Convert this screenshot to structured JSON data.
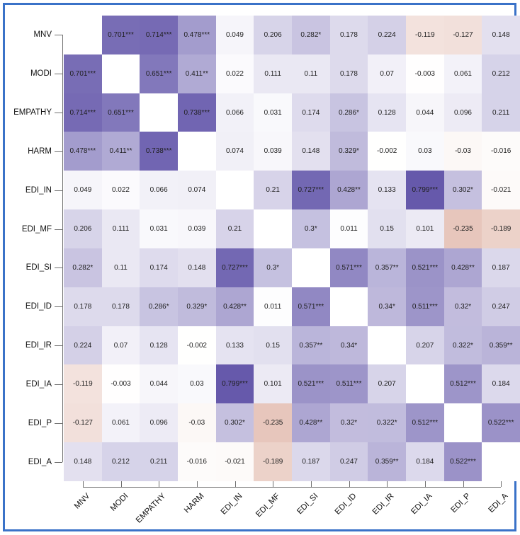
{
  "figure": {
    "border_color": "#3a72c8",
    "background": "#ffffff",
    "axis_color": "#707070",
    "cell_text_color": "#1f1f1f"
  },
  "chart_data": {
    "type": "heatmap",
    "title": "",
    "xlabel": "",
    "ylabel": "",
    "legend": "none",
    "grid": false,
    "value_range": [
      -1,
      1
    ],
    "variables": [
      "MNV",
      "MODI",
      "EMPATHY",
      "HARM",
      "EDI_IN",
      "EDI_MF",
      "EDI_SI",
      "EDI_ID",
      "EDI_IR",
      "EDI_IA",
      "EDI_P",
      "EDI_A"
    ],
    "matrix": [
      [
        "",
        "0.701***",
        "0.714***",
        "0.478***",
        "0.049",
        "0.206",
        "0.282*",
        "0.178",
        "0.224",
        "-0.119",
        "-0.127",
        "0.148"
      ],
      [
        "0.701***",
        "",
        "0.651***",
        "0.411**",
        "0.022",
        "0.111",
        "0.11",
        "0.178",
        "0.07",
        "-0.003",
        "0.061",
        "0.212"
      ],
      [
        "0.714***",
        "0.651***",
        "",
        "0.738***",
        "0.066",
        "0.031",
        "0.174",
        "0.286*",
        "0.128",
        "0.044",
        "0.096",
        "0.211"
      ],
      [
        "0.478***",
        "0.411**",
        "0.738***",
        "",
        "0.074",
        "0.039",
        "0.148",
        "0.329*",
        "-0.002",
        "0.03",
        "-0.03",
        "-0.016"
      ],
      [
        "0.049",
        "0.022",
        "0.066",
        "0.074",
        "",
        "0.21",
        "0.727***",
        "0.428**",
        "0.133",
        "0.799***",
        "0.302*",
        "-0.021"
      ],
      [
        "0.206",
        "0.111",
        "0.031",
        "0.039",
        "0.21",
        "",
        "0.3*",
        "0.011",
        "0.15",
        "0.101",
        "-0.235",
        "-0.189"
      ],
      [
        "0.282*",
        "0.11",
        "0.174",
        "0.148",
        "0.727***",
        "0.3*",
        "",
        "0.571***",
        "0.357**",
        "0.521***",
        "0.428**",
        "0.187"
      ],
      [
        "0.178",
        "0.178",
        "0.286*",
        "0.329*",
        "0.428**",
        "0.011",
        "0.571***",
        "",
        "0.34*",
        "0.511***",
        "0.32*",
        "0.247"
      ],
      [
        "0.224",
        "0.07",
        "0.128",
        "-0.002",
        "0.133",
        "0.15",
        "0.357**",
        "0.34*",
        "",
        "0.207",
        "0.322*",
        "0.359**"
      ],
      [
        "-0.119",
        "-0.003",
        "0.044",
        "0.03",
        "0.799***",
        "0.101",
        "0.521***",
        "0.511***",
        "0.207",
        "",
        "0.512***",
        "0.184"
      ],
      [
        "-0.127",
        "0.061",
        "0.096",
        "-0.03",
        "0.302*",
        "-0.235",
        "0.428**",
        "0.32*",
        "0.322*",
        "0.512***",
        "",
        "0.522***"
      ],
      [
        "0.148",
        "0.212",
        "0.211",
        "-0.016",
        "-0.021",
        "-0.189",
        "0.187",
        "0.247",
        "0.359**",
        "0.184",
        "0.522***",
        ""
      ]
    ],
    "colors": {
      "positive_max": "#3f2f96",
      "negative_max": "#b24623",
      "zero": "#ffffff",
      "diagonal": "#ffffff"
    }
  }
}
